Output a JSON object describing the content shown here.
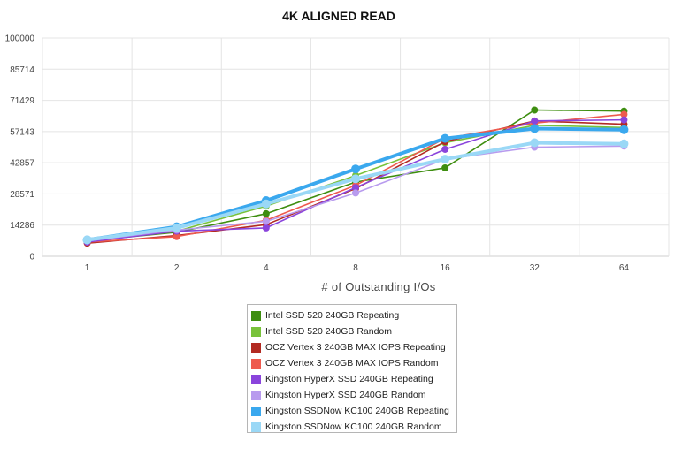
{
  "chart_data": {
    "type": "line",
    "title": "4K ALIGNED READ",
    "xlabel": "# of Outstanding I/Os",
    "ylabel": "",
    "categories": [
      "1",
      "2",
      "4",
      "8",
      "16",
      "32",
      "64"
    ],
    "yticks": [
      "0",
      "14286",
      "28571",
      "42857",
      "57143",
      "71429",
      "85714",
      "100000"
    ],
    "ylim": [
      0,
      100000
    ],
    "grid": true,
    "legend_position": "bottom",
    "series": [
      {
        "name": "Intel SSD 520 240GB Repeating",
        "color": "#3e8e10",
        "values": [
          7000,
          11000,
          19500,
          34000,
          40500,
          67000,
          66500
        ]
      },
      {
        "name": "Intel SSD 520 240GB Random",
        "color": "#78c23a",
        "values": [
          7000,
          11500,
          23000,
          37000,
          52000,
          60000,
          59000
        ]
      },
      {
        "name": "OCZ Vertex 3 240GB MAX IOPS Repeating",
        "color": "#b22a22",
        "values": [
          6000,
          9500,
          14500,
          31000,
          52500,
          62000,
          60500
        ]
      },
      {
        "name": "OCZ Vertex 3 240GB MAX IOPS Random",
        "color": "#ee5a4e",
        "values": [
          6500,
          9000,
          16500,
          32500,
          54000,
          61000,
          65000
        ]
      },
      {
        "name": "Kingston HyperX SSD 240GB Repeating",
        "color": "#8a44dc",
        "values": [
          6500,
          11500,
          13000,
          31500,
          49000,
          62000,
          62500
        ]
      },
      {
        "name": "Kingston HyperX SSD 240GB Random",
        "color": "#b89bee",
        "values": [
          7000,
          12000,
          16000,
          29000,
          44500,
          50000,
          50500
        ]
      },
      {
        "name": "Kingston SSDNow KC100 240GB Repeating",
        "color": "#3aa8ee",
        "values": [
          7500,
          13500,
          25500,
          40000,
          54000,
          58500,
          58000
        ]
      },
      {
        "name": "Kingston SSDNow KC100 240GB Random",
        "color": "#9ad8f6",
        "values": [
          7500,
          13000,
          24000,
          35500,
          44500,
          52000,
          51500
        ]
      }
    ]
  }
}
